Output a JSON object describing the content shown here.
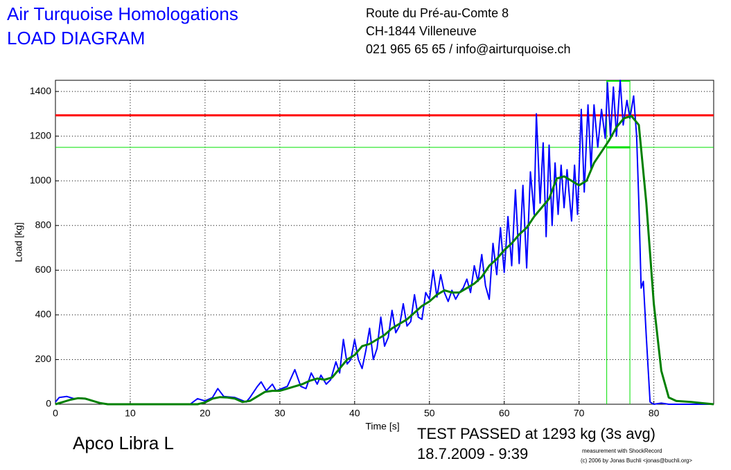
{
  "chart_data": {
    "type": "line",
    "title": "Air Turquoise Homologations",
    "subtitle": "LOAD DIAGRAM",
    "address": [
      "Route du Pré-au-Comte 8",
      "CH-1844 Villeneuve",
      "021 965 65 65 / info@airturquoise.ch"
    ],
    "xlabel": "Time [s]",
    "ylabel": "Load [kg]",
    "glider": "Apco Libra L",
    "result": "TEST PASSED at 1293 kg (3s avg)",
    "date": "18.7.2009 - 9:39",
    "credits": [
      "measurement with ShockRecord",
      "(c) 2006 by Jonas Buchli <jonas@buchli.org>"
    ],
    "xlim": [
      0,
      88
    ],
    "ylim": [
      0,
      1450
    ],
    "xticks": [
      0,
      10,
      20,
      30,
      40,
      50,
      60,
      70,
      80
    ],
    "yticks": [
      0,
      200,
      400,
      600,
      800,
      1000,
      1200,
      1400
    ],
    "grid": true,
    "limit_line": {
      "value": 1293,
      "color": "#ff0000"
    },
    "avg_window": {
      "x": [
        73.7,
        76.8
      ],
      "level": 1150,
      "color": "#00e000"
    },
    "series": [
      {
        "color": "#0000ff",
        "x": [
          0,
          0.5,
          1.5,
          2.5,
          3.5,
          5,
          6.5,
          8,
          18,
          19,
          20,
          21,
          21.7,
          22.5,
          24,
          25.5,
          26,
          27,
          27.5,
          28.2,
          29,
          29.5,
          31,
          32,
          32.8,
          33.5,
          34.2,
          35,
          35.5,
          36.2,
          36.8,
          37.5,
          38,
          38.5,
          39,
          39.5,
          40,
          40.5,
          41,
          41.5,
          42,
          42.5,
          43,
          43.5,
          44,
          44.5,
          45,
          45.5,
          46,
          46.5,
          47,
          47.5,
          48,
          48.5,
          49,
          49.5,
          50,
          50.5,
          51,
          51.5,
          52,
          52.5,
          53,
          53.5,
          54,
          54.5,
          55,
          55.5,
          56,
          56.5,
          57,
          57.5,
          58,
          58.5,
          59,
          59.5,
          60,
          60.5,
          61,
          61.5,
          62,
          62.5,
          63,
          63.5,
          64,
          64.3,
          64.8,
          65.2,
          65.6,
          66,
          66.4,
          66.8,
          67.2,
          67.6,
          68,
          68.4,
          69,
          69.4,
          69.8,
          70.3,
          70.7,
          71.2,
          71.6,
          72,
          72.5,
          73,
          73.5,
          73.8,
          74.2,
          74.6,
          75,
          75.5,
          75.9,
          76.4,
          76.8,
          77.3,
          77.7,
          78,
          78.3,
          78.6,
          79,
          79.5,
          80,
          81,
          82,
          88
        ],
        "values": [
          10,
          30,
          35,
          25,
          28,
          15,
          2,
          0,
          0,
          25,
          15,
          30,
          70,
          35,
          30,
          10,
          30,
          80,
          100,
          60,
          90,
          60,
          80,
          155,
          80,
          70,
          140,
          90,
          130,
          90,
          110,
          190,
          140,
          290,
          180,
          200,
          290,
          200,
          160,
          240,
          340,
          200,
          250,
          390,
          260,
          300,
          420,
          320,
          350,
          450,
          350,
          370,
          490,
          390,
          380,
          500,
          470,
          600,
          480,
          580,
          500,
          460,
          510,
          470,
          500,
          520,
          560,
          500,
          620,
          550,
          670,
          530,
          470,
          720,
          580,
          790,
          590,
          840,
          620,
          960,
          630,
          980,
          610,
          1040,
          850,
          1300,
          900,
          1170,
          750,
          1160,
          800,
          1080,
          850,
          1070,
          880,
          1050,
          820,
          1070,
          850,
          1320,
          950,
          1340,
          1050,
          1340,
          1150,
          1320,
          1190,
          1440,
          1200,
          1420,
          1200,
          1450,
          1250,
          1360,
          1280,
          1380,
          1200,
          900,
          520,
          550,
          300,
          10,
          0,
          5,
          0,
          0
        ]
      },
      {
        "color": "#008000",
        "x": [
          0,
          1,
          2,
          3,
          4,
          5,
          6,
          7,
          19,
          20,
          21,
          22,
          23,
          24,
          25,
          26,
          27,
          28,
          29,
          30,
          31,
          32,
          33,
          34,
          35,
          36,
          37,
          38,
          39,
          40,
          41,
          42,
          43,
          44,
          45,
          46,
          47,
          48,
          49,
          50,
          51,
          52,
          53,
          54,
          55,
          56,
          57,
          58,
          59,
          60,
          61,
          62,
          63,
          64,
          65,
          66,
          67,
          68,
          69,
          70,
          71,
          72,
          73,
          74,
          75,
          76,
          77,
          78,
          79,
          80,
          81,
          82,
          83,
          85,
          88
        ],
        "values": [
          0,
          10,
          20,
          27,
          25,
          15,
          5,
          0,
          0,
          8,
          25,
          32,
          30,
          25,
          10,
          15,
          35,
          55,
          60,
          60,
          70,
          80,
          90,
          105,
          115,
          110,
          120,
          160,
          200,
          220,
          260,
          270,
          290,
          310,
          340,
          360,
          380,
          410,
          440,
          460,
          490,
          510,
          500,
          500,
          520,
          540,
          570,
          620,
          650,
          690,
          720,
          760,
          790,
          840,
          880,
          920,
          1010,
          1020,
          1000,
          980,
          1000,
          1080,
          1130,
          1180,
          1240,
          1280,
          1290,
          1250,
          900,
          450,
          150,
          30,
          15,
          10,
          0
        ]
      }
    ]
  }
}
